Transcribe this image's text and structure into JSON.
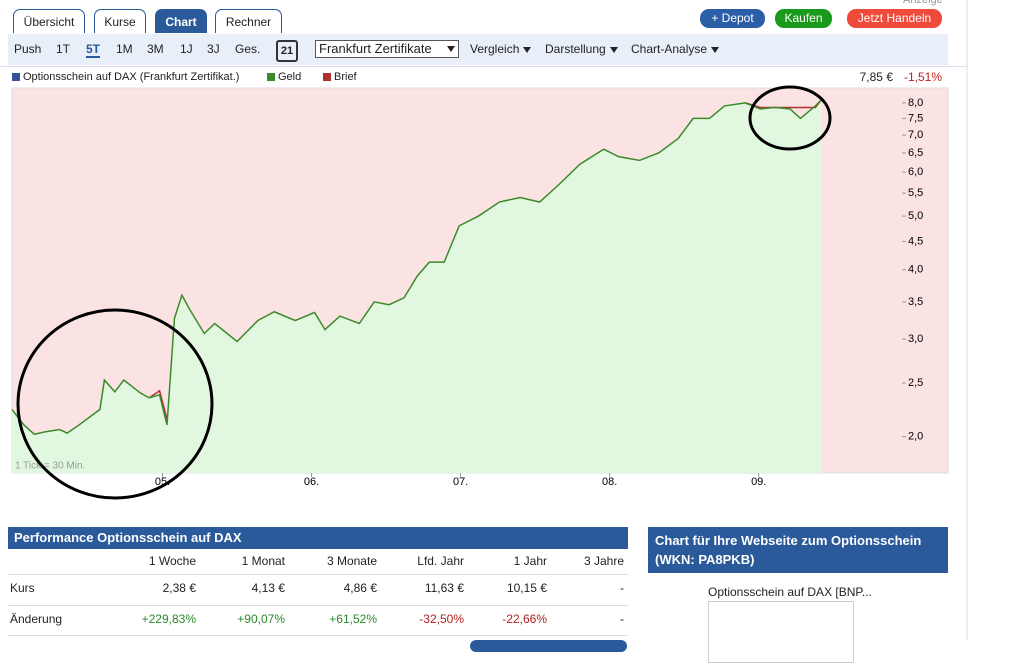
{
  "ad_label": "Anzeige",
  "tabs": [
    "Übersicht",
    "Kurse",
    "Chart",
    "Rechner"
  ],
  "buttons": [
    "+ Depot",
    "Kaufen",
    "Jetzt Handeln"
  ],
  "toolbar": {
    "periods": [
      "Push",
      "1T",
      "5T",
      "1M",
      "3M",
      "1J",
      "3J",
      "Ges."
    ],
    "calendar": "21",
    "exchange": "Frankfurt Zertifikate",
    "menus": [
      "Vergleich",
      "Darstellung",
      "Chart-Analyse"
    ]
  },
  "quote": {
    "price": "7,85 €",
    "change": "-1,51%"
  },
  "chart_data": {
    "type": "line",
    "instrument": {
      "name": "Optionsschein auf DAX  (Frankfurt Zertifikat.)",
      "color": "#2f5597"
    },
    "annotation": "1 Tick = 30 Min.",
    "log_scale": true,
    "x": [
      3.99,
      4.07,
      4.14,
      4.21,
      4.31,
      4.36,
      4.44,
      4.58,
      4.61,
      4.68,
      4.74,
      4.85,
      4.91,
      4.98,
      5.03,
      5.08,
      5.13,
      5.18,
      5.28,
      5.35,
      5.5,
      5.64,
      5.75,
      5.89,
      6.02,
      6.09,
      6.19,
      6.32,
      6.42,
      6.52,
      6.62,
      6.71,
      6.79,
      6.89,
      6.99,
      7.12,
      7.26,
      7.4,
      7.53,
      7.66,
      7.8,
      7.96,
      8.06,
      8.2,
      8.33,
      8.46,
      8.56,
      8.67,
      8.77,
      8.91,
      9.01,
      9.11,
      9.21,
      9.28,
      9.38,
      9.42
    ],
    "series": [
      {
        "name": "Geld",
        "color": "#3a8a2a",
        "values": [
          2.24,
          2.1,
          2.02,
          2.04,
          2.06,
          2.03,
          2.1,
          2.24,
          2.53,
          2.41,
          2.53,
          2.4,
          2.35,
          2.38,
          2.1,
          3.27,
          3.6,
          3.4,
          3.07,
          3.2,
          2.97,
          3.24,
          3.36,
          3.24,
          3.35,
          3.12,
          3.3,
          3.2,
          3.5,
          3.46,
          3.56,
          3.9,
          4.13,
          4.13,
          4.8,
          5.0,
          5.3,
          5.4,
          5.3,
          5.7,
          6.2,
          6.6,
          6.4,
          6.3,
          6.5,
          6.9,
          7.5,
          7.5,
          7.9,
          8.0,
          7.8,
          7.85,
          7.8,
          7.5,
          7.9,
          8.1
        ]
      },
      {
        "name": "Brief",
        "color": "#b03030",
        "values": [
          null,
          null,
          null,
          null,
          null,
          null,
          null,
          null,
          null,
          null,
          null,
          null,
          2.35,
          2.42,
          2.15,
          null,
          null,
          null,
          null,
          null,
          null,
          null,
          null,
          null,
          null,
          null,
          null,
          null,
          null,
          null,
          null,
          null,
          null,
          null,
          null,
          null,
          null,
          null,
          null,
          null,
          null,
          null,
          null,
          null,
          null,
          null,
          null,
          null,
          null,
          8.0,
          7.85,
          7.85,
          7.85,
          7.85,
          7.85,
          8.1
        ]
      }
    ],
    "xlim": [
      3.99,
      10.27
    ],
    "xticks": [
      {
        "value": 5,
        "label": "05."
      },
      {
        "value": 6,
        "label": "06."
      },
      {
        "value": 7,
        "label": "07."
      },
      {
        "value": 8,
        "label": "08."
      },
      {
        "value": 9,
        "label": "09."
      }
    ],
    "ylim": [
      1.72,
      8.51
    ],
    "yticks": [
      {
        "value": 2,
        "label": "2,0"
      },
      {
        "value": 2.5,
        "label": "2,5"
      },
      {
        "value": 3,
        "label": "3,0"
      },
      {
        "value": 3.5,
        "label": "3,5"
      },
      {
        "value": 4,
        "label": "4,0"
      },
      {
        "value": 4.5,
        "label": "4,5"
      },
      {
        "value": 5,
        "label": "5,0"
      },
      {
        "value": 5.5,
        "label": "5,5"
      },
      {
        "value": 6,
        "label": "6,0"
      },
      {
        "value": 6.5,
        "label": "6,5"
      },
      {
        "value": 7,
        "label": "7,0"
      },
      {
        "value": 7.5,
        "label": "7,5"
      },
      {
        "value": 8,
        "label": "8,0"
      }
    ]
  },
  "performance": {
    "title": "Performance Optionsschein auf DAX",
    "columns": [
      "1 Woche",
      "1 Monat",
      "3 Monate",
      "Lfd. Jahr",
      "1 Jahr",
      "3 Jahre"
    ],
    "rows": [
      [
        "Kurs",
        "2,38 €",
        "4,13 €",
        "4,86 €",
        "11,63 €",
        "10,15 €",
        "-"
      ],
      [
        "Änderung",
        "+229,83%",
        "+90,07%",
        "+61,52%",
        "-32,50%",
        "-22,66%",
        "-"
      ]
    ]
  },
  "widget": {
    "title": "Chart für Ihre Webseite zum Optionsschein",
    "wkn": "(WKN: PA8PKB)",
    "text": "Optionsschein auf DAX [BNP..."
  }
}
